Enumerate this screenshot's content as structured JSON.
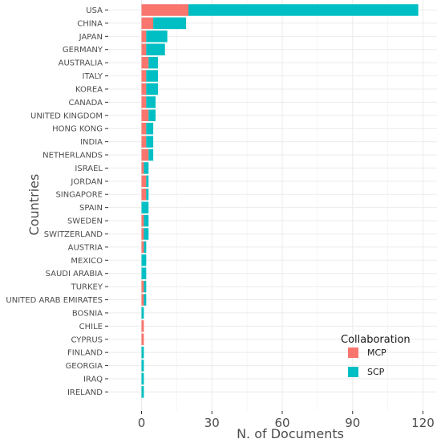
{
  "chart_data": {
    "type": "bar",
    "orientation": "horizontal",
    "stacked": true,
    "ylabel": "Countries",
    "xlabel": "N. of Documents",
    "xlim": [
      0,
      120
    ],
    "x_ticks": [
      0,
      30,
      60,
      90,
      120
    ],
    "grid": true,
    "legend_position": "bottom-right",
    "legend_title": "Collaboration",
    "categories": [
      "USA",
      "CHINA",
      "JAPAN",
      "GERMANY",
      "AUSTRALIA",
      "ITALY",
      "KOREA",
      "CANADA",
      "UNITED KINGDOM",
      "HONG KONG",
      "INDIA",
      "NETHERLANDS",
      "ISRAEL",
      "JORDAN",
      "SINGAPORE",
      "SPAIN",
      "SWEDEN",
      "SWITZERLAND",
      "AUSTRIA",
      "MEXICO",
      "SAUDI ARABIA",
      "TURKEY",
      "UNITED ARAB EMIRATES",
      "BOSNIA",
      "CHILE",
      "CYPRUS",
      "FINLAND",
      "GEORGIA",
      "IRAQ",
      "IRELAND"
    ],
    "series": [
      {
        "name": "MCP",
        "color": "#F8766D",
        "values": [
          20,
          5,
          2,
          2,
          3,
          2,
          2,
          2,
          3,
          2,
          2,
          3,
          1,
          2,
          2,
          0,
          1,
          1,
          1,
          0,
          0,
          1,
          1,
          0,
          1,
          1,
          0,
          0,
          0,
          0
        ]
      },
      {
        "name": "SCP",
        "color": "#00BFC4",
        "values": [
          98,
          14,
          9,
          8,
          4,
          5,
          5,
          4,
          3,
          3,
          3,
          2,
          2,
          1,
          1,
          3,
          2,
          2,
          1,
          2,
          2,
          1,
          1,
          1,
          0,
          0,
          1,
          1,
          1,
          1
        ]
      }
    ]
  }
}
